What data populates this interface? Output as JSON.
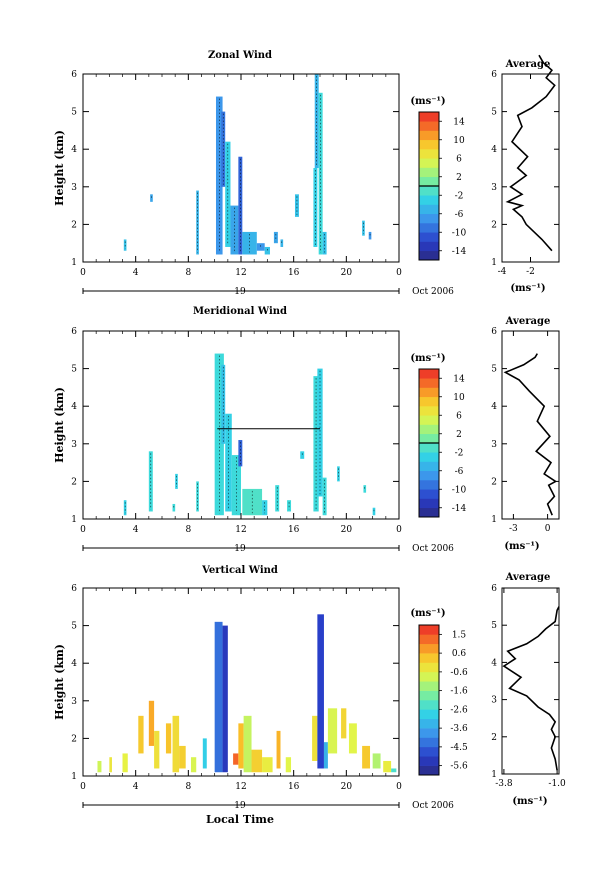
{
  "figure": {
    "xlabel": "Local Time",
    "date_label": "19",
    "month_label": "Oct 2006"
  },
  "chart_data": [
    {
      "type": "heatmap",
      "title": "Zonal Wind",
      "ylabel": "Height (km)",
      "xlim": [
        0,
        24
      ],
      "ylim": [
        1,
        6
      ],
      "xticks": [
        "0",
        "4",
        "8",
        "12",
        "16",
        "20",
        "0"
      ],
      "yticks": [
        "1",
        "2",
        "3",
        "4",
        "5",
        "6"
      ],
      "colorbar": {
        "unit": "(ms⁻¹)",
        "ticks": [
          "14",
          "10",
          "6",
          "2",
          "-2",
          "-6",
          "-10",
          "-14"
        ],
        "range": [
          -16,
          16
        ],
        "zero_line": true
      },
      "contour_line_height": null,
      "cells": [
        [
          3.1,
          3.3,
          1.3,
          1.6,
          -4
        ],
        [
          5.1,
          5.3,
          2.6,
          2.8,
          -6
        ],
        [
          8.6,
          8.8,
          1.2,
          2.9,
          -5
        ],
        [
          10.1,
          10.6,
          1.2,
          5.4,
          -7
        ],
        [
          10.5,
          10.8,
          3.0,
          5.0,
          -9
        ],
        [
          10.8,
          11.2,
          1.4,
          4.2,
          -3
        ],
        [
          11.2,
          11.8,
          1.2,
          2.5,
          -6
        ],
        [
          11.8,
          12.1,
          1.2,
          3.8,
          -10
        ],
        [
          12.1,
          13.2,
          1.2,
          1.8,
          -5
        ],
        [
          13.2,
          13.8,
          1.3,
          1.5,
          -7
        ],
        [
          13.8,
          14.2,
          1.2,
          1.4,
          -4
        ],
        [
          14.5,
          14.8,
          1.5,
          1.8,
          -6
        ],
        [
          15.0,
          15.2,
          1.4,
          1.6,
          -5
        ],
        [
          16.1,
          16.4,
          2.2,
          2.8,
          -4
        ],
        [
          17.5,
          17.8,
          1.4,
          3.5,
          -3
        ],
        [
          17.6,
          17.9,
          3.5,
          6.0,
          -5
        ],
        [
          17.9,
          18.2,
          1.2,
          5.5,
          -2
        ],
        [
          18.2,
          18.5,
          1.2,
          1.8,
          -4
        ],
        [
          21.2,
          21.4,
          1.7,
          2.1,
          -4
        ],
        [
          21.7,
          21.9,
          1.6,
          1.8,
          -7
        ]
      ]
    },
    {
      "type": "heatmap",
      "title": "Meridional Wind",
      "ylabel": "Height (km)",
      "xlim": [
        0,
        24
      ],
      "ylim": [
        1,
        6
      ],
      "xticks": [
        "0",
        "4",
        "8",
        "12",
        "16",
        "20",
        "0"
      ],
      "yticks": [
        "1",
        "2",
        "3",
        "4",
        "5",
        "6"
      ],
      "colorbar": {
        "unit": "(ms⁻¹)",
        "ticks": [
          "14",
          "10",
          "6",
          "2",
          "-2",
          "-6",
          "-10",
          "-14"
        ],
        "range": [
          -16,
          16
        ],
        "zero_line": true
      },
      "contour_line_height": 3.4,
      "cells": [
        [
          3.1,
          3.3,
          1.1,
          1.5,
          -3
        ],
        [
          5.0,
          5.3,
          1.2,
          2.8,
          -2
        ],
        [
          6.8,
          7.0,
          1.2,
          1.4,
          -2
        ],
        [
          7.0,
          7.2,
          1.8,
          2.2,
          -3
        ],
        [
          8.6,
          8.8,
          1.2,
          2.0,
          -2
        ],
        [
          10.0,
          10.7,
          1.1,
          5.4,
          -2
        ],
        [
          10.5,
          10.8,
          3.0,
          5.1,
          -4
        ],
        [
          10.8,
          11.3,
          1.2,
          3.8,
          -3
        ],
        [
          11.3,
          12.0,
          1.1,
          2.7,
          -2
        ],
        [
          11.8,
          12.1,
          2.4,
          3.1,
          -10
        ],
        [
          12.1,
          13.6,
          1.1,
          1.8,
          -1
        ],
        [
          13.6,
          14.0,
          1.1,
          1.5,
          -3
        ],
        [
          14.6,
          14.9,
          1.2,
          1.9,
          -2
        ],
        [
          15.5,
          15.8,
          1.2,
          1.5,
          -2
        ],
        [
          16.5,
          16.8,
          2.6,
          2.8,
          -3
        ],
        [
          17.5,
          17.9,
          1.2,
          4.8,
          -2
        ],
        [
          17.8,
          18.2,
          1.6,
          5.0,
          -3
        ],
        [
          18.2,
          18.5,
          1.1,
          2.1,
          -2
        ],
        [
          19.3,
          19.5,
          2.0,
          2.4,
          -3
        ],
        [
          21.3,
          21.5,
          1.7,
          1.9,
          -2
        ],
        [
          22.0,
          22.2,
          1.1,
          1.3,
          -3
        ]
      ]
    },
    {
      "type": "heatmap",
      "title": "Vertical Wind",
      "ylabel": "Height (km)",
      "xlim": [
        0,
        24
      ],
      "ylim": [
        1,
        6
      ],
      "xticks": [
        "0",
        "4",
        "8",
        "12",
        "16",
        "20",
        "0"
      ],
      "yticks": [
        "1",
        "2",
        "3",
        "4",
        "5",
        "6"
      ],
      "colorbar": {
        "unit": "(ms⁻¹)",
        "ticks": [
          "1.5",
          "0.6",
          "-0.6",
          "-1.6",
          "-2.6",
          "-3.6",
          "-4.5",
          "-5.6"
        ],
        "range": [
          -6,
          2
        ],
        "zero_line": false
      },
      "contour_line_height": null,
      "cells": [
        [
          1.1,
          1.4,
          1.1,
          1.4,
          -0.8
        ],
        [
          2.0,
          2.2,
          1.1,
          1.5,
          -0.3
        ],
        [
          3.0,
          3.4,
          1.1,
          1.6,
          -0.5
        ],
        [
          4.2,
          4.6,
          1.6,
          2.6,
          0.2
        ],
        [
          5.0,
          5.4,
          1.8,
          3.0,
          0.6
        ],
        [
          5.4,
          5.8,
          1.2,
          2.2,
          -0.2
        ],
        [
          6.3,
          6.7,
          1.6,
          2.4,
          0.3
        ],
        [
          6.8,
          7.3,
          1.1,
          2.6,
          -0.1
        ],
        [
          7.3,
          7.8,
          1.2,
          1.8,
          0.1
        ],
        [
          8.2,
          8.6,
          1.1,
          1.5,
          -0.7
        ],
        [
          9.1,
          9.4,
          1.2,
          2.0,
          -2.8
        ],
        [
          10.0,
          10.6,
          1.1,
          5.1,
          -4.3
        ],
        [
          10.6,
          11.0,
          1.1,
          5.0,
          -5.2
        ],
        [
          11.4,
          11.8,
          1.3,
          1.6,
          1.3
        ],
        [
          11.8,
          12.2,
          1.2,
          2.4,
          0.4
        ],
        [
          12.2,
          12.8,
          1.1,
          2.6,
          -0.9
        ],
        [
          12.8,
          13.6,
          1.1,
          1.7,
          0.1
        ],
        [
          13.6,
          14.4,
          1.1,
          1.5,
          -0.4
        ],
        [
          14.7,
          15.0,
          1.2,
          2.2,
          0.5
        ],
        [
          15.4,
          15.8,
          1.1,
          1.5,
          -0.6
        ],
        [
          17.4,
          17.8,
          1.4,
          2.6,
          -0.2
        ],
        [
          17.8,
          18.3,
          1.2,
          5.3,
          -5.0
        ],
        [
          18.3,
          18.6,
          1.2,
          1.9,
          -3.3
        ],
        [
          18.6,
          19.3,
          1.6,
          2.8,
          -0.7
        ],
        [
          19.6,
          20.0,
          2.0,
          2.8,
          0.0
        ],
        [
          20.2,
          20.8,
          1.6,
          2.4,
          -0.6
        ],
        [
          21.2,
          21.8,
          1.2,
          1.8,
          0.2
        ],
        [
          22.0,
          22.6,
          1.2,
          1.6,
          -1.1
        ],
        [
          22.8,
          23.4,
          1.1,
          1.4,
          -0.4
        ],
        [
          23.4,
          23.8,
          1.1,
          1.2,
          -2.3
        ]
      ]
    },
    {
      "type": "line",
      "title": "Average",
      "xlabel": "(ms⁻¹)",
      "xlim": [
        -4,
        0
      ],
      "ylim": [
        1,
        6
      ],
      "xticks": [
        "-4",
        "-2"
      ],
      "xtick_values": [
        -4,
        -2
      ],
      "yticks": [
        "1",
        "2",
        "3",
        "4",
        "5",
        "6"
      ],
      "profile": [
        [
          -0.5,
          1.3
        ],
        [
          -1.2,
          1.6
        ],
        [
          -2.3,
          2.0
        ],
        [
          -2.6,
          2.2
        ],
        [
          -3.2,
          2.4
        ],
        [
          -2.6,
          2.5
        ],
        [
          -3.6,
          2.6
        ],
        [
          -2.6,
          2.8
        ],
        [
          -3.4,
          3.0
        ],
        [
          -2.3,
          3.3
        ],
        [
          -2.9,
          3.5
        ],
        [
          -2.2,
          3.8
        ],
        [
          -3.3,
          4.2
        ],
        [
          -2.6,
          4.6
        ],
        [
          -2.9,
          4.9
        ],
        [
          -1.9,
          5.1
        ],
        [
          -0.9,
          5.4
        ],
        [
          -0.3,
          5.7
        ],
        [
          -0.9,
          5.9
        ],
        [
          -0.5,
          6.1
        ],
        [
          -1.1,
          6.3
        ],
        [
          -1.4,
          6.5
        ]
      ]
    },
    {
      "type": "line",
      "title": "Average",
      "xlabel": "(ms⁻¹)",
      "xlim": [
        -4,
        1
      ],
      "ylim": [
        1,
        6
      ],
      "xticks": [
        "-3",
        "0"
      ],
      "xtick_values": [
        -3,
        0
      ],
      "yticks": [
        "1",
        "2",
        "3",
        "4",
        "5",
        "6"
      ],
      "profile": [
        [
          0.4,
          1.1
        ],
        [
          0.0,
          1.4
        ],
        [
          0.6,
          1.6
        ],
        [
          0.1,
          1.9
        ],
        [
          0.7,
          2.0
        ],
        [
          -0.3,
          2.2
        ],
        [
          0.3,
          2.5
        ],
        [
          -1.0,
          2.8
        ],
        [
          0.2,
          3.2
        ],
        [
          -0.9,
          3.6
        ],
        [
          -0.3,
          4.0
        ],
        [
          -1.6,
          4.4
        ],
        [
          -2.5,
          4.7
        ],
        [
          -3.7,
          4.9
        ],
        [
          -2.1,
          5.1
        ],
        [
          -1.1,
          5.3
        ],
        [
          -0.9,
          5.4
        ]
      ]
    },
    {
      "type": "line",
      "title": "Average",
      "xlabel": "(ms⁻¹)",
      "xlim": [
        -3.9,
        -0.9
      ],
      "ylim": [
        1,
        6
      ],
      "xticks": [
        "-3.8",
        "-1.0"
      ],
      "xtick_values": [
        -3.8,
        -1.0
      ],
      "yticks": [
        "1",
        "2",
        "3",
        "4",
        "5",
        "6"
      ],
      "profile": [
        [
          -1.0,
          1.1
        ],
        [
          -1.1,
          1.4
        ],
        [
          -1.3,
          1.7
        ],
        [
          -1.1,
          2.0
        ],
        [
          -1.3,
          2.2
        ],
        [
          -1.1,
          2.4
        ],
        [
          -1.4,
          2.6
        ],
        [
          -2.0,
          2.8
        ],
        [
          -2.6,
          3.1
        ],
        [
          -3.5,
          3.3
        ],
        [
          -2.9,
          3.6
        ],
        [
          -3.8,
          3.9
        ],
        [
          -3.2,
          4.1
        ],
        [
          -3.6,
          4.3
        ],
        [
          -2.6,
          4.5
        ],
        [
          -2.0,
          4.7
        ],
        [
          -1.6,
          4.9
        ],
        [
          -1.1,
          5.1
        ],
        [
          -1.0,
          5.4
        ],
        [
          -0.9,
          5.5
        ]
      ]
    }
  ]
}
